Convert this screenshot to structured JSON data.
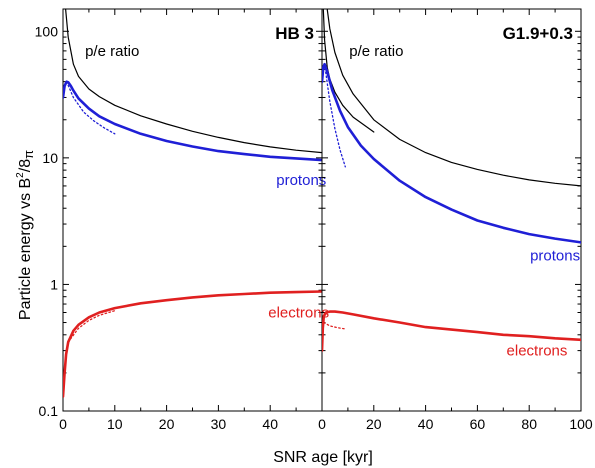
{
  "figure": {
    "ylabel_main": "Particle energy vs B",
    "ylabel_sup": "2",
    "ylabel_tail": "/8",
    "ylabel_pi": "π",
    "xlabel": "SNR age [kyr]"
  },
  "chart_data": [
    {
      "type": "line",
      "title": "HB 3",
      "xlabel": "SNR age [kyr]",
      "ylabel": "Particle energy vs B^2/8π",
      "xlim": [
        0,
        50
      ],
      "ylim": [
        0.1,
        150
      ],
      "yscale": "log",
      "xticks": [
        0,
        10,
        20,
        30,
        40
      ],
      "yticks": [
        0.1,
        1,
        10,
        100
      ],
      "ytick_labels": [
        "0.1",
        "1",
        "10",
        "100"
      ],
      "grid": false,
      "series": [
        {
          "name": "p/e ratio",
          "color": "#000000",
          "style": "solid",
          "x": [
            0.5,
            1,
            2,
            3,
            5,
            7,
            10,
            15,
            20,
            25,
            30,
            35,
            40,
            45,
            50
          ],
          "y": [
            150,
            90,
            55,
            44,
            35,
            30.5,
            26,
            21.5,
            18.5,
            16.2,
            14.5,
            13.2,
            12.2,
            11.5,
            11
          ]
        },
        {
          "name": "protons",
          "color": "#1f1fd6",
          "style": "solid",
          "x": [
            0,
            0.3,
            0.7,
            1,
            1.5,
            2,
            3,
            5,
            7,
            10,
            15,
            20,
            25,
            30,
            35,
            40,
            45,
            50
          ],
          "y": [
            30,
            37,
            40,
            39.5,
            37,
            34,
            29.5,
            24.5,
            21.3,
            18.5,
            15.5,
            13.6,
            12.3,
            11.3,
            10.7,
            10.2,
            9.9,
            9.6
          ]
        },
        {
          "name": "protons (dotted)",
          "color": "#1f1fd6",
          "style": "dotted",
          "x": [
            0.7,
            2,
            4,
            6,
            8,
            10
          ],
          "y": [
            40,
            30,
            23,
            19.5,
            17.2,
            15.5
          ]
        },
        {
          "name": "electrons",
          "color": "#e02020",
          "style": "solid",
          "x": [
            0,
            0.3,
            0.6,
            1,
            2,
            3,
            5,
            7,
            10,
            15,
            20,
            25,
            30,
            35,
            40,
            45,
            50
          ],
          "y": [
            0.13,
            0.2,
            0.28,
            0.35,
            0.43,
            0.48,
            0.55,
            0.6,
            0.65,
            0.71,
            0.75,
            0.79,
            0.82,
            0.84,
            0.86,
            0.87,
            0.88
          ]
        },
        {
          "name": "electrons (dotted)",
          "color": "#e02020",
          "style": "dotted",
          "x": [
            1,
            3,
            5,
            7,
            10
          ],
          "y": [
            0.35,
            0.45,
            0.52,
            0.57,
            0.62
          ]
        }
      ],
      "annotations": [
        {
          "text": "p/e ratio",
          "x": 9.5,
          "y": 70,
          "color": "#000000"
        },
        {
          "text": "protons",
          "x": 46,
          "y": 6.7,
          "color": "#1f1fd6"
        },
        {
          "text": "electrons",
          "x": 45.5,
          "y": 0.6,
          "color": "#e02020"
        }
      ]
    },
    {
      "type": "line",
      "title": "G1.9+0.3",
      "xlabel": "SNR age [kyr]",
      "ylabel": "Particle energy vs B^2/8π",
      "xlim": [
        0,
        100
      ],
      "ylim": [
        0.1,
        150
      ],
      "yscale": "log",
      "xticks": [
        0,
        20,
        40,
        60,
        80,
        100
      ],
      "yticks": [
        0.1,
        1,
        10,
        100
      ],
      "grid": false,
      "series": [
        {
          "name": "p/e ratio (upper)",
          "color": "#000000",
          "style": "solid",
          "x": [
            2,
            3,
            5,
            8,
            12,
            20,
            30,
            40,
            50,
            60,
            70,
            80,
            90,
            100
          ],
          "y": [
            150,
            105,
            68,
            45,
            32,
            20,
            14,
            11,
            9.2,
            8.1,
            7.3,
            6.7,
            6.3,
            6
          ]
        },
        {
          "name": "p/e ratio (lower)",
          "color": "#000000",
          "style": "solid",
          "x": [
            0.5,
            1,
            2,
            3,
            5,
            8,
            12,
            20
          ],
          "y": [
            150,
            85,
            52,
            42,
            33,
            26,
            21,
            16
          ]
        },
        {
          "name": "protons",
          "color": "#1f1fd6",
          "style": "solid",
          "x": [
            0,
            0.5,
            1,
            2,
            4,
            7,
            10,
            15,
            20,
            30,
            40,
            50,
            60,
            70,
            80,
            90,
            100
          ],
          "y": [
            40,
            52,
            55,
            48,
            34,
            23.5,
            17.5,
            12.5,
            9.8,
            6.6,
            4.9,
            3.9,
            3.2,
            2.8,
            2.5,
            2.3,
            2.15
          ]
        },
        {
          "name": "protons (dotted)",
          "color": "#1f1fd6",
          "style": "dotted",
          "x": [
            1,
            3,
            5,
            7,
            9
          ],
          "y": [
            55,
            28,
            17,
            11.5,
            8.5
          ]
        },
        {
          "name": "electrons",
          "color": "#e02020",
          "style": "solid",
          "x": [
            0,
            0.3,
            0.7,
            1.5,
            3,
            5,
            8,
            12,
            20,
            30,
            40,
            50,
            60,
            70,
            80,
            90,
            100
          ],
          "y": [
            0.3,
            0.45,
            0.56,
            0.6,
            0.61,
            0.61,
            0.6,
            0.58,
            0.54,
            0.5,
            0.46,
            0.44,
            0.42,
            0.4,
            0.39,
            0.375,
            0.365
          ]
        },
        {
          "name": "electrons (dotted)",
          "color": "#e02020",
          "style": "dotted",
          "x": [
            0.7,
            3,
            6,
            9
          ],
          "y": [
            0.5,
            0.47,
            0.455,
            0.445
          ]
        }
      ],
      "annotations": [
        {
          "text": "p/e ratio",
          "x": 21,
          "y": 70,
          "color": "#000000"
        },
        {
          "text": "protons",
          "x": 90,
          "y": 1.7,
          "color": "#1f1fd6"
        },
        {
          "text": "electrons",
          "x": 83,
          "y": 0.3,
          "color": "#e02020"
        }
      ]
    }
  ]
}
